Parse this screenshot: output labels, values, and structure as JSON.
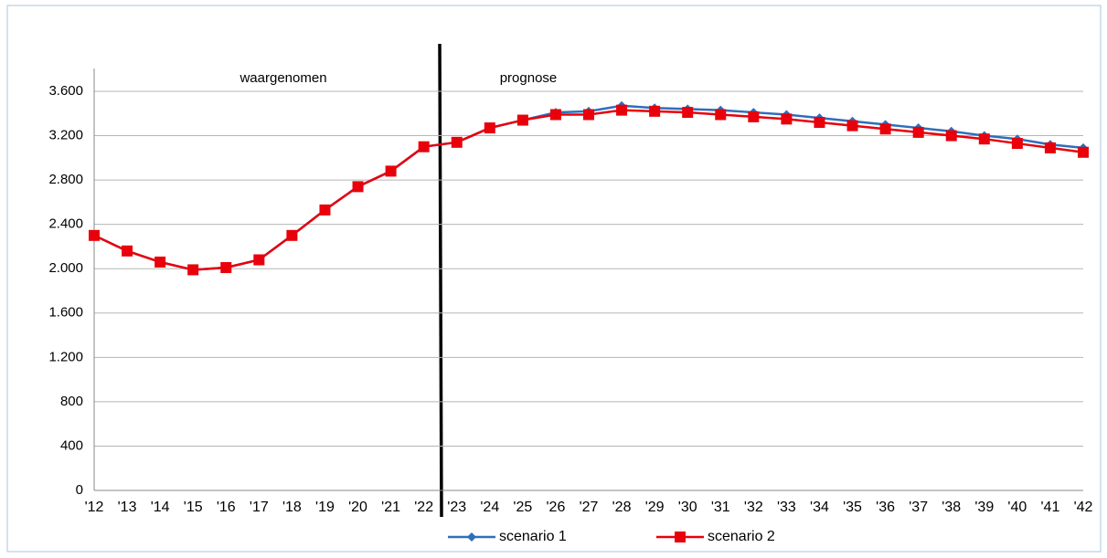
{
  "chart_data": {
    "type": "line",
    "annotations": [
      "waargenomen",
      "prognose"
    ],
    "categories": [
      "'12",
      "'13",
      "'14",
      "'15",
      "'16",
      "'17",
      "'18",
      "'19",
      "'20",
      "'21",
      "'22",
      "'23",
      "'24",
      "'25",
      "'26",
      "'27",
      "'28",
      "'29",
      "'30",
      "'31",
      "'32",
      "'33",
      "'34",
      "'35",
      "'36",
      "'37",
      "'38",
      "'39",
      "'40",
      "'41",
      "'42"
    ],
    "series": [
      {
        "name": "scenario 1",
        "color": "#2f6eba",
        "marker": "diamond",
        "values": [
          2300,
          2160,
          2060,
          1990,
          2010,
          2080,
          2300,
          2530,
          2740,
          2880,
          3100,
          3140,
          3270,
          3340,
          3410,
          3420,
          3470,
          3450,
          3440,
          3430,
          3410,
          3390,
          3360,
          3330,
          3300,
          3270,
          3240,
          3200,
          3170,
          3120,
          3090
        ]
      },
      {
        "name": "scenario 2",
        "color": "#e8000b",
        "marker": "square",
        "values": [
          2300,
          2160,
          2060,
          1990,
          2010,
          2080,
          2300,
          2530,
          2740,
          2880,
          3100,
          3140,
          3270,
          3340,
          3390,
          3390,
          3430,
          3420,
          3410,
          3390,
          3370,
          3350,
          3320,
          3290,
          3260,
          3230,
          3200,
          3170,
          3130,
          3090,
          3050
        ]
      }
    ],
    "ylim": [
      0,
      3600
    ],
    "yticks": [
      0,
      400,
      800,
      {
        "value": 1200,
        "label": "1.200"
      },
      {
        "value": 1600,
        "label": "1.600"
      },
      {
        "value": 2000,
        "label": "2.000"
      },
      {
        "value": 2400,
        "label": "2.400"
      },
      {
        "value": 2800,
        "label": "2.800"
      },
      {
        "value": 3200,
        "label": "3.200"
      },
      {
        "value": 3600,
        "label": "3.600"
      }
    ],
    "grid": true,
    "legend": "bottom"
  }
}
